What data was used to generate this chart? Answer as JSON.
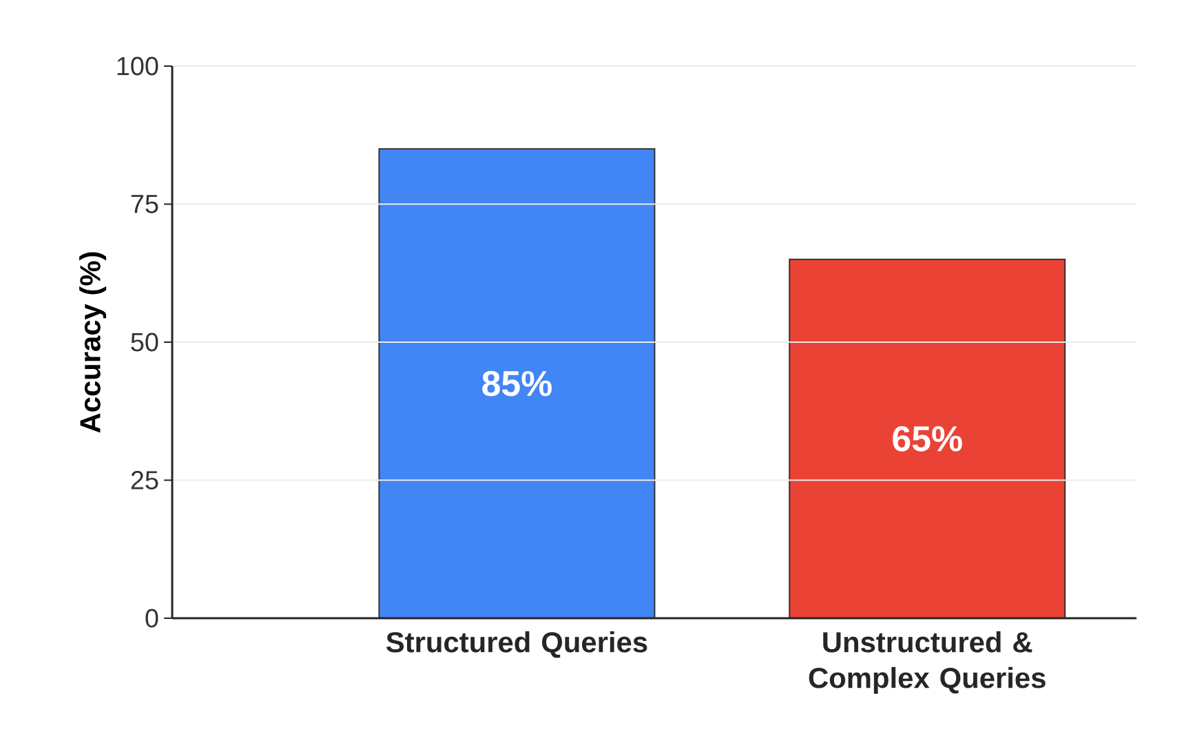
{
  "chart_data": {
    "type": "bar",
    "ylabel": "Accuracy (%)",
    "categories": [
      "Structured Queries",
      "Unstructured & Complex Queries"
    ],
    "values": [
      85,
      65
    ],
    "colors": [
      "#4285f4",
      "#ea4335"
    ],
    "value_labels": [
      "85%",
      "65%"
    ],
    "ylim": [
      0,
      100
    ],
    "yticks": [
      0,
      25,
      50,
      75,
      100
    ],
    "grid": "y"
  }
}
